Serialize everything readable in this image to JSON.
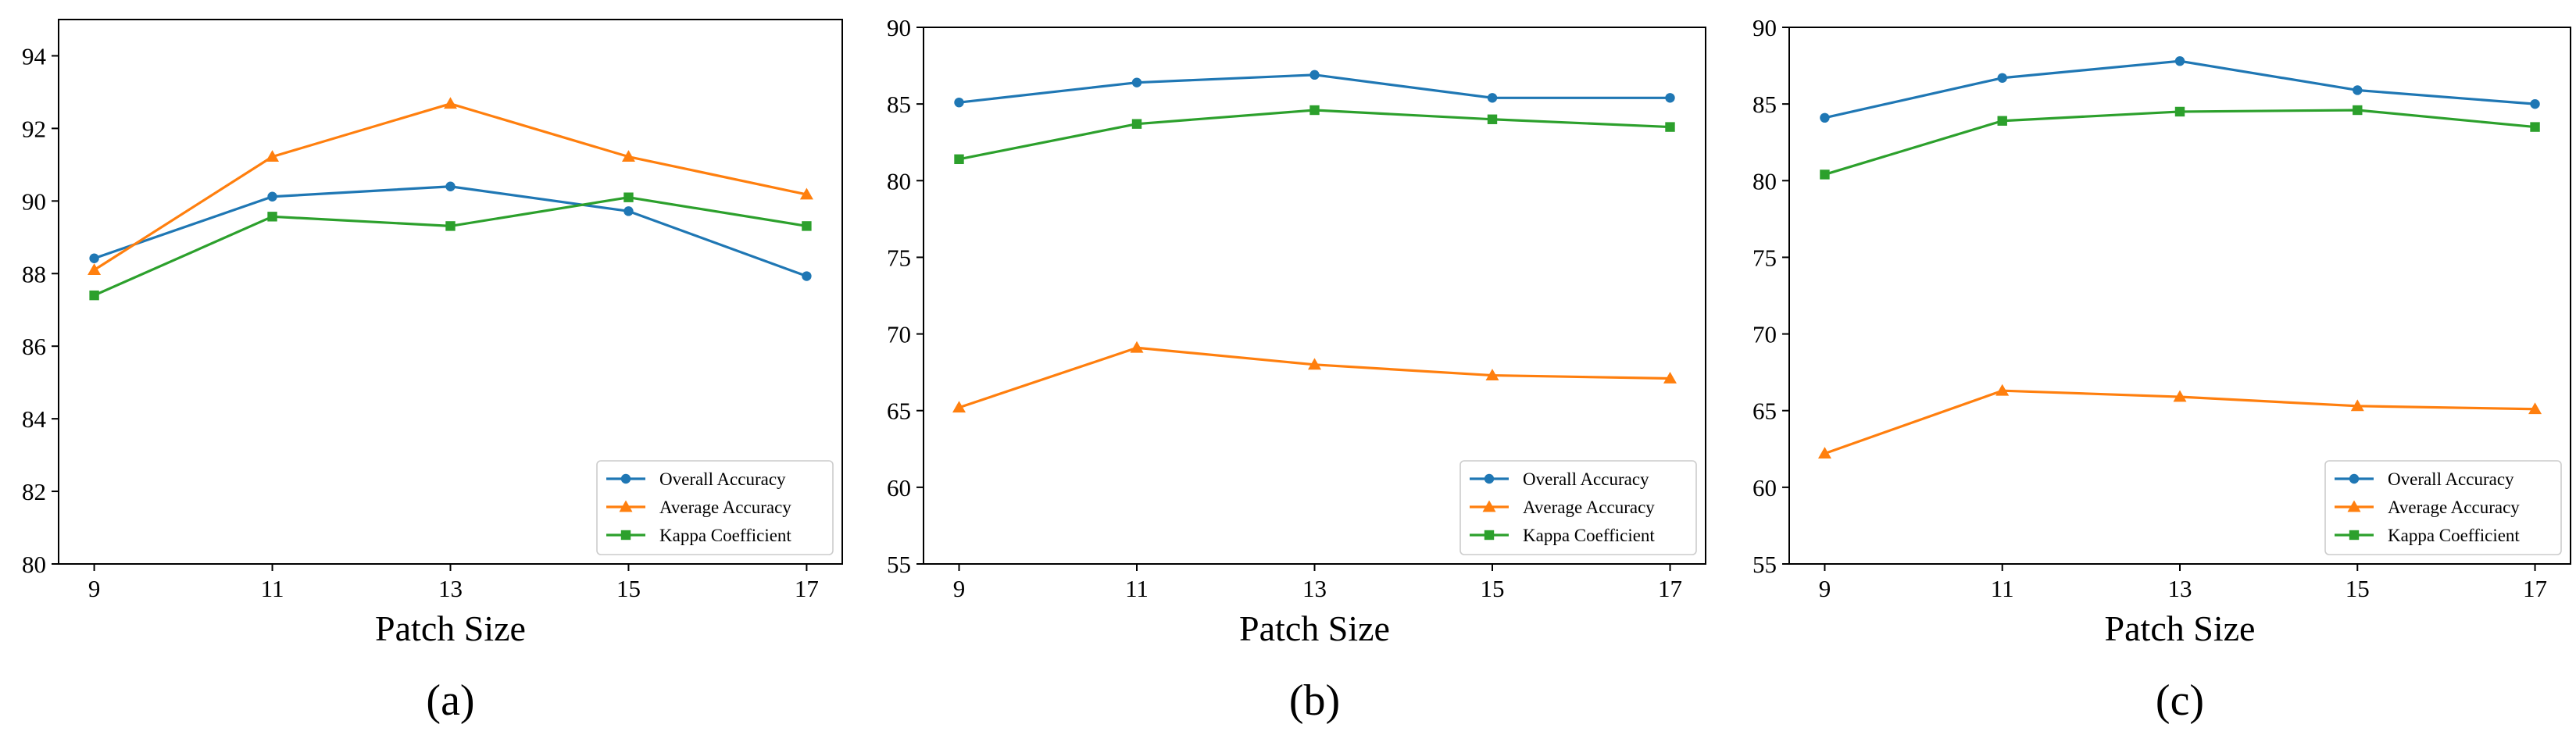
{
  "colors": {
    "overall": "#1f77b4",
    "average": "#ff7f0e",
    "kappa": "#2ca02c"
  },
  "chart_data": [
    {
      "type": "line",
      "panel_label": "(a)",
      "xlabel": "Patch Size",
      "ylabel": "",
      "x": [
        9,
        11,
        13,
        15,
        17
      ],
      "x_ticks": [
        "9",
        "11",
        "13",
        "15",
        "17"
      ],
      "ylim": [
        80,
        95
      ],
      "y_ticks": [
        "80",
        "82",
        "84",
        "86",
        "88",
        "90",
        "92",
        "94"
      ],
      "legend_position": "lower-right",
      "series": [
        {
          "name": "Overall Accuracy",
          "marker": "circle",
          "values": [
            88.42,
            90.12,
            90.4,
            89.72,
            87.93
          ]
        },
        {
          "name": "Average Accuracy",
          "marker": "triangle",
          "values": [
            88.1,
            91.22,
            92.68,
            91.22,
            90.18
          ]
        },
        {
          "name": "Kappa Coefficient",
          "marker": "square",
          "values": [
            87.4,
            89.57,
            89.31,
            90.1,
            89.31
          ]
        }
      ]
    },
    {
      "type": "line",
      "panel_label": "(b)",
      "xlabel": "Patch Size",
      "ylabel": "",
      "x": [
        9,
        11,
        13,
        15,
        17
      ],
      "x_ticks": [
        "9",
        "11",
        "13",
        "15",
        "17"
      ],
      "ylim": [
        55,
        90
      ],
      "y_ticks": [
        "55",
        "60",
        "65",
        "70",
        "75",
        "80",
        "85",
        "90"
      ],
      "legend_position": "lower-right",
      "series": [
        {
          "name": "Overall Accuracy",
          "marker": "circle",
          "values": [
            85.1,
            86.4,
            86.9,
            85.4,
            85.4
          ]
        },
        {
          "name": "Average Accuracy",
          "marker": "triangle",
          "values": [
            65.2,
            69.1,
            68.0,
            67.3,
            67.1
          ]
        },
        {
          "name": "Kappa Coefficient",
          "marker": "square",
          "values": [
            81.4,
            83.7,
            84.6,
            84.0,
            83.5
          ]
        }
      ]
    },
    {
      "type": "line",
      "panel_label": "(c)",
      "xlabel": "Patch Size",
      "ylabel": "",
      "x": [
        9,
        11,
        13,
        15,
        17
      ],
      "x_ticks": [
        "9",
        "11",
        "13",
        "15",
        "17"
      ],
      "ylim": [
        55,
        90
      ],
      "y_ticks": [
        "55",
        "60",
        "65",
        "70",
        "75",
        "80",
        "85",
        "90"
      ],
      "legend_position": "lower-right",
      "series": [
        {
          "name": "Overall Accuracy",
          "marker": "circle",
          "values": [
            84.1,
            86.7,
            87.8,
            85.9,
            85.0
          ]
        },
        {
          "name": "Average Accuracy",
          "marker": "triangle",
          "values": [
            62.2,
            66.3,
            65.9,
            65.3,
            65.1
          ]
        },
        {
          "name": "Kappa Coefficient",
          "marker": "square",
          "values": [
            80.4,
            83.9,
            84.5,
            84.6,
            83.5
          ]
        }
      ]
    }
  ]
}
